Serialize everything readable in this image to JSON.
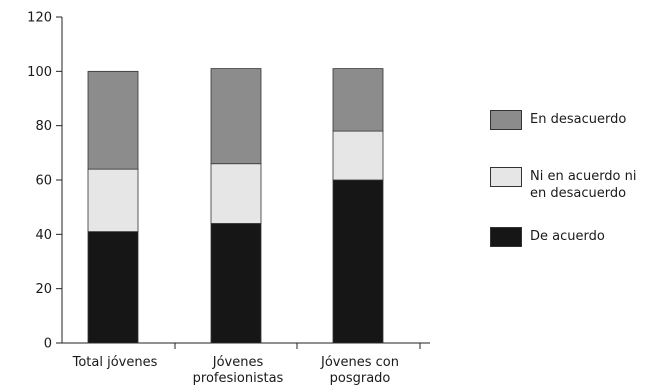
{
  "chart_data": {
    "type": "bar",
    "stacked": true,
    "categories": [
      [
        "Total jóvenes"
      ],
      [
        "Jóvenes",
        "profesionistas"
      ],
      [
        "Jóvenes con",
        "posgrado"
      ]
    ],
    "series": [
      {
        "name": "De acuerdo",
        "values": [
          41,
          44,
          60
        ],
        "color": "#161616"
      },
      {
        "name": "Ni en acuerdo ni en desacuerdo",
        "values": [
          23,
          22,
          18
        ],
        "color": "#e6e6e6"
      },
      {
        "name": "En desacuerdo",
        "values": [
          36,
          35,
          23
        ],
        "color": "#8c8c8c"
      }
    ],
    "ylim": [
      0,
      120
    ],
    "yticks": [
      0,
      20,
      40,
      60,
      80,
      100,
      120
    ],
    "xlabel": "",
    "ylabel": "",
    "title": "",
    "grid": false,
    "legend_position": "right"
  },
  "legend": {
    "items": [
      {
        "lines": [
          "En desacuerdo"
        ],
        "color": "#8c8c8c"
      },
      {
        "lines": [
          "Ni en acuerdo ni",
          "en desacuerdo"
        ],
        "color": "#e6e6e6"
      },
      {
        "lines": [
          "De acuerdo"
        ],
        "color": "#161616"
      }
    ]
  }
}
